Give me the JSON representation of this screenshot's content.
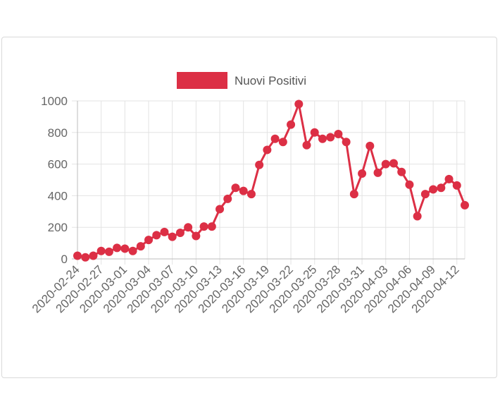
{
  "chart_data": {
    "type": "line",
    "legend": {
      "label": "Nuovi Positivi",
      "position": "top",
      "color": "#dc2f45"
    },
    "series": [
      {
        "name": "Nuovi Positivi",
        "color": "#dc2f45",
        "values": [
          20,
          10,
          20,
          50,
          45,
          70,
          65,
          50,
          80,
          120,
          150,
          170,
          140,
          165,
          200,
          145,
          205,
          205,
          315,
          380,
          450,
          430,
          410,
          595,
          690,
          760,
          740,
          850,
          980,
          720,
          800,
          760,
          770,
          790,
          740,
          410,
          540,
          715,
          545,
          600,
          605,
          550,
          470,
          270,
          410,
          440,
          450,
          505,
          465,
          340
        ]
      }
    ],
    "x_start": "2020-02-24",
    "x_end": "2020-04-13",
    "x_tick_labels": [
      "2020-02-24",
      "2020-02-27",
      "2020-03-01",
      "2020-03-04",
      "2020-03-07",
      "2020-03-10",
      "2020-03-13",
      "2020-03-16",
      "2020-03-19",
      "2020-03-22",
      "2020-03-25",
      "2020-03-28",
      "2020-03-31",
      "2020-04-03",
      "2020-04-06",
      "2020-04-09",
      "2020-04-12"
    ],
    "y_tick_labels": [
      "0",
      "200",
      "400",
      "600",
      "800",
      "1000"
    ],
    "ylim": [
      0,
      1000
    ],
    "grid": true
  }
}
